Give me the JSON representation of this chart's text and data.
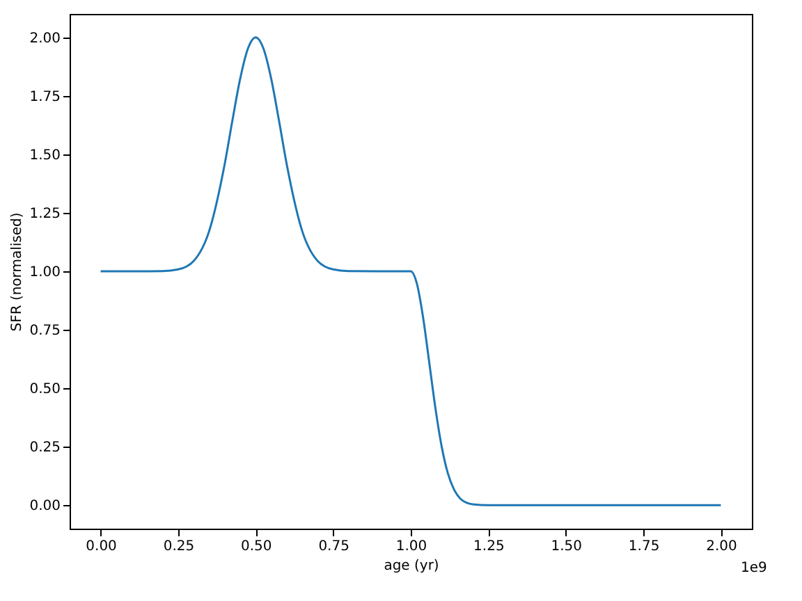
{
  "chart_data": {
    "type": "line",
    "xlabel": "age (yr)",
    "ylabel": "SFR (normalised)",
    "annotations": [
      "1e9"
    ],
    "x": [
      0,
      0.1,
      0.2,
      0.25,
      0.3,
      0.35,
      0.4,
      0.425,
      0.45,
      0.475,
      0.5,
      0.525,
      0.55,
      0.575,
      0.6,
      0.65,
      0.7,
      0.75,
      0.8,
      0.9,
      1.0,
      1.02,
      1.04,
      1.06,
      1.08,
      1.1,
      1.12,
      1.14,
      1.16,
      1.18,
      1.2,
      1.25,
      1.5,
      1.75,
      2.0
    ],
    "series": [
      {
        "color": "#1f77b4",
        "values": [
          1,
          1,
          1.001,
          1.008,
          1.044,
          1.172,
          1.458,
          1.645,
          1.823,
          1.952,
          2,
          1.952,
          1.823,
          1.645,
          1.458,
          1.172,
          1.044,
          1.008,
          1.001,
          1,
          1,
          0.946,
          0.801,
          0.607,
          0.411,
          0.249,
          0.135,
          0.066,
          0.028,
          0.011,
          0.004,
          0,
          0,
          0,
          0
        ]
      }
    ],
    "xlim": [
      -0.1,
      2.1
    ],
    "xticks": [
      {
        "value": 0,
        "label": "0.00"
      },
      0.25,
      {
        "value": 0.5,
        "label": "0.50"
      },
      0.75,
      {
        "value": 1,
        "label": "1.00"
      },
      1.25,
      {
        "value": 1.5,
        "label": "1.50"
      },
      1.75,
      {
        "value": 2,
        "label": "2.00"
      }
    ],
    "ylim": [
      -0.1,
      2.1
    ],
    "yticks": [
      {
        "value": 0,
        "label": "0.00"
      },
      0.25,
      {
        "value": 0.5,
        "label": "0.50"
      },
      0.75,
      {
        "value": 1,
        "label": "1.00"
      },
      1.25,
      {
        "value": 1.5,
        "label": "1.50"
      },
      1.75,
      {
        "value": 2,
        "label": "2.00"
      }
    ],
    "grid": false,
    "marker": "none",
    "line_style": "solid"
  }
}
